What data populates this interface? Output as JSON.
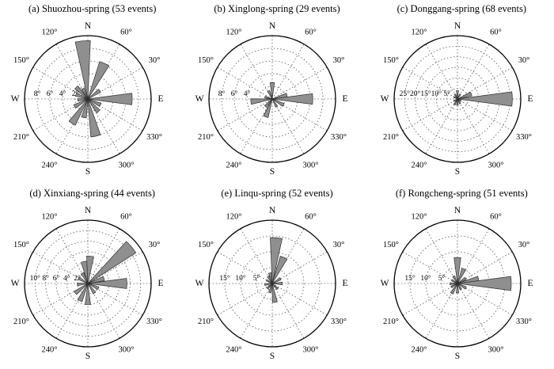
{
  "figure": {
    "shared": {
      "compass_labels": [
        {
          "angle_math": 90,
          "label": "N"
        },
        {
          "angle_math": 0,
          "label": "E"
        },
        {
          "angle_math": 270,
          "label": "S"
        },
        {
          "angle_math": 180,
          "label": "W"
        }
      ],
      "angle_tick_labels": [
        {
          "angle_math": 30,
          "label": "30°"
        },
        {
          "angle_math": 60,
          "label": "60°"
        },
        {
          "angle_math": 120,
          "label": "120°"
        },
        {
          "angle_math": 150,
          "label": "150°"
        },
        {
          "angle_math": 210,
          "label": "210°"
        },
        {
          "angle_math": 240,
          "label": "240°"
        },
        {
          "angle_math": 300,
          "label": "300°"
        },
        {
          "angle_math": 330,
          "label": "330°"
        }
      ],
      "petal_width_deg": 15,
      "petal_fill": "#8f8f8f",
      "petal_stroke": "#2f2f2f",
      "grid_color": "#555555",
      "outer_circle_color": "#000000"
    }
  },
  "chart_data": [
    {
      "type": "rose",
      "title": "(a) Shuozhou-spring (53 events)",
      "location": "Shuozhou",
      "season": "spring",
      "events": 53,
      "rmax": 10,
      "radial_circles": [
        2,
        4,
        6,
        8
      ],
      "radial_tick_labels": [
        {
          "value": 2,
          "label": "2°"
        },
        {
          "value": 4,
          "label": "4°"
        },
        {
          "value": 6,
          "label": "6°"
        },
        {
          "value": 8,
          "label": "8°"
        }
      ],
      "petals": [
        {
          "azimuth": 355,
          "value": 9.2
        },
        {
          "azimuth": 25,
          "value": 6.2
        },
        {
          "azimuth": 55,
          "value": 2.3
        },
        {
          "azimuth": 90,
          "value": 7.0
        },
        {
          "azimuth": 115,
          "value": 2.2
        },
        {
          "azimuth": 140,
          "value": 2.6
        },
        {
          "azimuth": 168,
          "value": 6.0
        },
        {
          "azimuth": 192,
          "value": 3.0
        },
        {
          "azimuth": 213,
          "value": 4.6
        },
        {
          "azimuth": 240,
          "value": 2.4
        },
        {
          "azimuth": 265,
          "value": 1.6
        },
        {
          "azimuth": 290,
          "value": 2.0
        },
        {
          "azimuth": 315,
          "value": 2.6
        },
        {
          "azimuth": 335,
          "value": 1.8
        }
      ]
    },
    {
      "type": "rose",
      "title": "(b) Xinglong-spring (29 events)",
      "location": "Xinglong",
      "season": "spring",
      "events": 29,
      "rmax": 10,
      "radial_circles": [
        2,
        4,
        6,
        8
      ],
      "radial_tick_labels": [
        {
          "value": 4,
          "label": "4°"
        },
        {
          "value": 6,
          "label": "6°"
        },
        {
          "value": 8,
          "label": "8°"
        }
      ],
      "petals": [
        {
          "azimuth": 0,
          "value": 2.6
        },
        {
          "azimuth": 75,
          "value": 2.4
        },
        {
          "azimuth": 90,
          "value": 6.4
        },
        {
          "azimuth": 118,
          "value": 2.0
        },
        {
          "azimuth": 150,
          "value": 1.4
        },
        {
          "azimuth": 200,
          "value": 3.0
        },
        {
          "azimuth": 222,
          "value": 1.6
        },
        {
          "azimuth": 263,
          "value": 3.4
        },
        {
          "azimuth": 285,
          "value": 1.2
        },
        {
          "azimuth": 335,
          "value": 1.4
        }
      ]
    },
    {
      "type": "rose",
      "title": "(c) Donggang-spring (68 events)",
      "location": "Donggang",
      "season": "spring",
      "events": 68,
      "rmax": 30,
      "radial_circles": [
        5,
        10,
        15,
        20,
        25
      ],
      "radial_tick_labels": [
        {
          "value": 5,
          "label": "5°"
        },
        {
          "value": 10,
          "label": "10°"
        },
        {
          "value": 15,
          "label": "15°"
        },
        {
          "value": 20,
          "label": "20°"
        },
        {
          "value": 25,
          "label": "25°"
        }
      ],
      "petals": [
        {
          "azimuth": 0,
          "value": 4.0
        },
        {
          "azimuth": 30,
          "value": 2.5
        },
        {
          "azimuth": 70,
          "value": 7.0
        },
        {
          "azimuth": 90,
          "value": 26.0
        },
        {
          "azimuth": 120,
          "value": 2.0
        },
        {
          "azimuth": 150,
          "value": 2.5
        },
        {
          "azimuth": 180,
          "value": 3.0
        },
        {
          "azimuth": 208,
          "value": 3.0
        },
        {
          "azimuth": 240,
          "value": 2.0
        },
        {
          "azimuth": 300,
          "value": 2.0
        },
        {
          "azimuth": 332,
          "value": 2.5
        }
      ]
    },
    {
      "type": "rose",
      "title": "(d) Xinxiang-spring (44 events)",
      "location": "Xinxiang",
      "season": "spring",
      "events": 44,
      "rmax": 12,
      "radial_circles": [
        2,
        4,
        6,
        8,
        10
      ],
      "radial_tick_labels": [
        {
          "value": 2,
          "label": "2°"
        },
        {
          "value": 4,
          "label": "4°"
        },
        {
          "value": 6,
          "label": "6°"
        },
        {
          "value": 8,
          "label": "8°"
        },
        {
          "value": 10,
          "label": "10°"
        }
      ],
      "petals": [
        {
          "azimuth": 350,
          "value": 4.2
        },
        {
          "azimuth": 5,
          "value": 5.2
        },
        {
          "azimuth": 50,
          "value": 10.8
        },
        {
          "azimuth": 73,
          "value": 3.2
        },
        {
          "azimuth": 90,
          "value": 7.4
        },
        {
          "azimuth": 115,
          "value": 2.2
        },
        {
          "azimuth": 145,
          "value": 2.2
        },
        {
          "azimuth": 180,
          "value": 4.0
        },
        {
          "azimuth": 205,
          "value": 3.6
        },
        {
          "azimuth": 233,
          "value": 3.0
        },
        {
          "azimuth": 265,
          "value": 2.0
        },
        {
          "azimuth": 300,
          "value": 2.0
        },
        {
          "azimuth": 332,
          "value": 2.2
        }
      ]
    },
    {
      "type": "rose",
      "title": "(e) Linqu-spring (52 events)",
      "location": "Linqu",
      "season": "spring",
      "events": 52,
      "rmax": 20,
      "radial_circles": [
        5,
        10,
        15
      ],
      "radial_tick_labels": [
        {
          "value": 5,
          "label": "5°"
        },
        {
          "value": 10,
          "label": "10°"
        },
        {
          "value": 15,
          "label": "15°"
        }
      ],
      "petals": [
        {
          "azimuth": 5,
          "value": 14.5
        },
        {
          "azimuth": 24,
          "value": 9.0
        },
        {
          "azimuth": 60,
          "value": 3.0
        },
        {
          "azimuth": 90,
          "value": 3.2
        },
        {
          "azimuth": 135,
          "value": 2.4
        },
        {
          "azimuth": 172,
          "value": 6.0
        },
        {
          "azimuth": 195,
          "value": 3.0
        },
        {
          "azimuth": 225,
          "value": 2.2
        },
        {
          "azimuth": 262,
          "value": 2.4
        },
        {
          "azimuth": 300,
          "value": 2.0
        },
        {
          "azimuth": 330,
          "value": 2.6
        },
        {
          "azimuth": 347,
          "value": 3.4
        }
      ]
    },
    {
      "type": "rose",
      "title": "(f) Rongcheng-spring (51 events)",
      "location": "Rongcheng",
      "season": "spring",
      "events": 51,
      "rmax": 20,
      "radial_circles": [
        5,
        10,
        15
      ],
      "radial_tick_labels": [
        {
          "value": 5,
          "label": "5°"
        },
        {
          "value": 10,
          "label": "10°"
        },
        {
          "value": 15,
          "label": "15°"
        }
      ],
      "petals": [
        {
          "azimuth": 0,
          "value": 8.2
        },
        {
          "azimuth": 24,
          "value": 5.0
        },
        {
          "azimuth": 58,
          "value": 3.0
        },
        {
          "azimuth": 78,
          "value": 6.8
        },
        {
          "azimuth": 90,
          "value": 17.0
        },
        {
          "azimuth": 118,
          "value": 3.0
        },
        {
          "azimuth": 150,
          "value": 2.2
        },
        {
          "azimuth": 180,
          "value": 3.0
        },
        {
          "azimuth": 210,
          "value": 3.6
        },
        {
          "azimuth": 240,
          "value": 2.2
        },
        {
          "azimuth": 268,
          "value": 2.4
        },
        {
          "azimuth": 300,
          "value": 2.0
        },
        {
          "azimuth": 332,
          "value": 2.6
        }
      ]
    }
  ]
}
